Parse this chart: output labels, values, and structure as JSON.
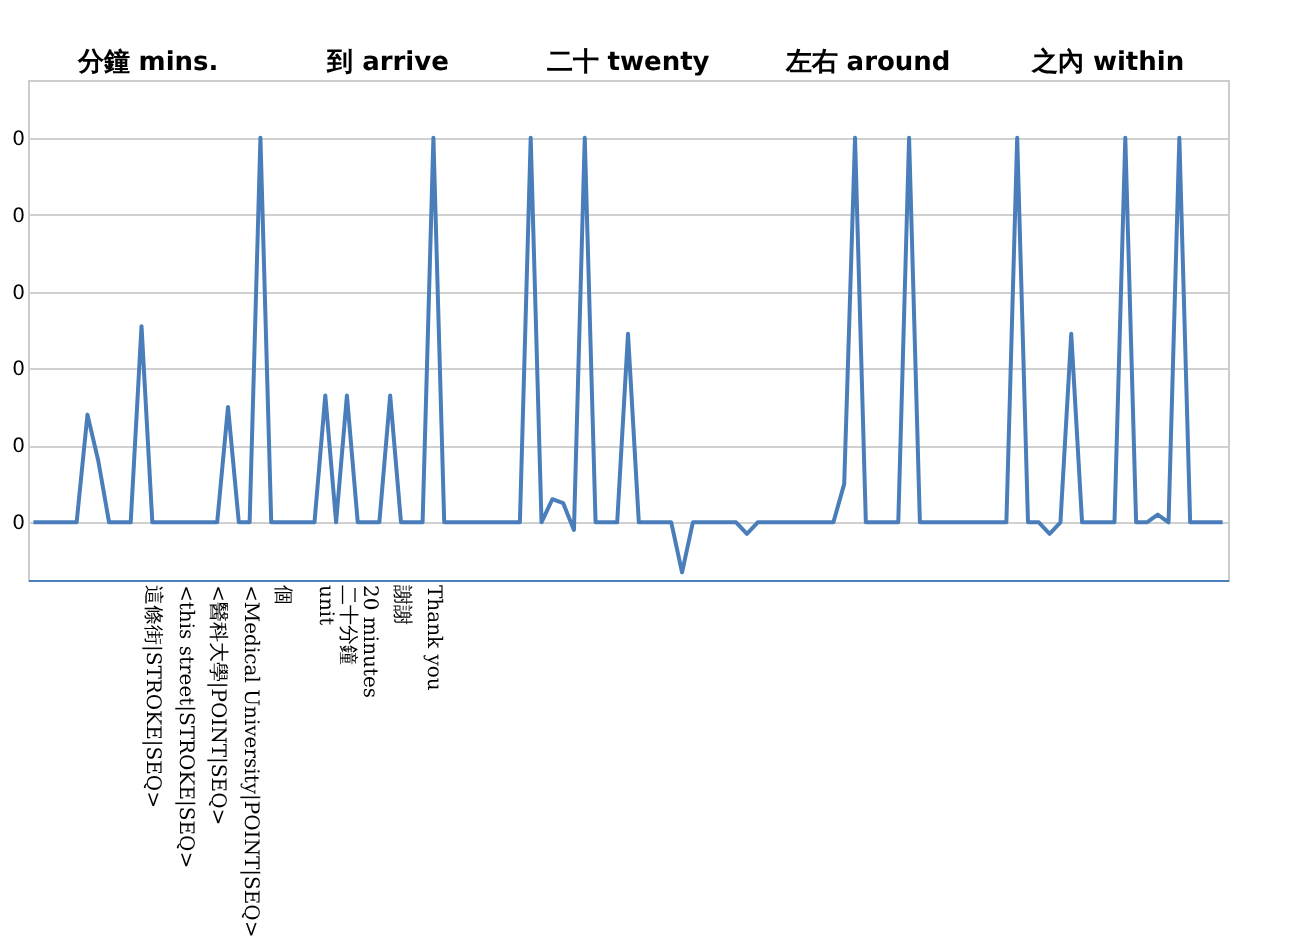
{
  "chart_data": {
    "type": "line",
    "categories": [
      null,
      null,
      null,
      null,
      null,
      null,
      null,
      null,
      null,
      null,
      null,
      "這條街|STROKE|SEQ>",
      null,
      null,
      "<this street|STROKE|SEQ>",
      null,
      null,
      "<醫科大學|POINT|SEQ>",
      null,
      null,
      "<Medical University|POINT|SEQ>",
      null,
      null,
      "個",
      null,
      null,
      null,
      "unit",
      null,
      "二十分鐘",
      null,
      "20 minutes",
      null,
      null,
      "謝謝",
      null,
      null,
      "Thank you",
      null,
      null,
      null,
      null,
      null,
      null,
      null,
      null,
      null,
      null,
      null,
      null,
      null,
      null,
      null,
      null,
      null,
      null,
      null,
      null,
      null,
      null,
      null,
      null,
      null,
      null,
      null,
      null,
      null,
      null,
      null,
      null,
      null,
      null,
      null,
      null,
      null,
      null,
      null,
      null,
      null,
      null,
      null,
      null,
      null,
      null,
      null,
      null,
      null,
      null,
      null,
      null,
      null,
      null,
      null,
      null,
      null,
      null,
      null,
      null,
      null,
      null,
      null,
      null,
      null,
      null,
      null,
      null,
      null,
      null,
      null,
      null,
      null
    ],
    "series": [
      {
        "color": "#4a7ebb",
        "values": [
          0,
          0,
          0,
          0,
          0,
          0.112,
          0.064,
          0,
          0,
          0,
          0.204,
          0,
          0,
          0,
          0,
          0,
          0,
          0,
          0.12,
          0,
          0,
          0.4,
          0,
          0,
          0,
          0,
          0,
          0.132,
          0,
          0.132,
          0,
          0,
          0,
          0.132,
          0,
          0,
          0,
          0.4,
          0,
          0,
          0,
          0,
          0,
          0,
          0,
          0,
          0.4,
          0,
          0.024,
          0.02,
          -0.008,
          0.4,
          0,
          0,
          0,
          0.196,
          0,
          0,
          0,
          0,
          -0.052,
          0,
          0,
          0,
          0,
          0,
          -0.012,
          0,
          0,
          0,
          0,
          0,
          0,
          0,
          0,
          0.04,
          0.4,
          0,
          0,
          0,
          0,
          0.4,
          0,
          0,
          0,
          0,
          0,
          0,
          0,
          0,
          0,
          0.4,
          0,
          0,
          -0.012,
          0,
          0.196,
          0,
          0,
          0,
          0,
          0.4,
          0,
          0,
          0.008,
          0,
          0.4,
          0,
          0,
          0,
          0
        ]
      }
    ],
    "ylim": [
      -0.06,
      0.46
    ],
    "yticks": [
      {
        "value": 0,
        "label": "0"
      },
      {
        "value": 0.08,
        "label": "0"
      },
      {
        "value": 0.16,
        "label": "0"
      },
      {
        "value": 0.24,
        "label": "0"
      },
      {
        "value": 0.32,
        "label": "0"
      },
      {
        "value": 0.4,
        "label": "0"
      }
    ],
    "grid": "y",
    "annotations": [
      "分鐘 mins.",
      "到 arrive",
      "二十 twenty",
      "左右 around",
      "之內 within"
    ]
  }
}
